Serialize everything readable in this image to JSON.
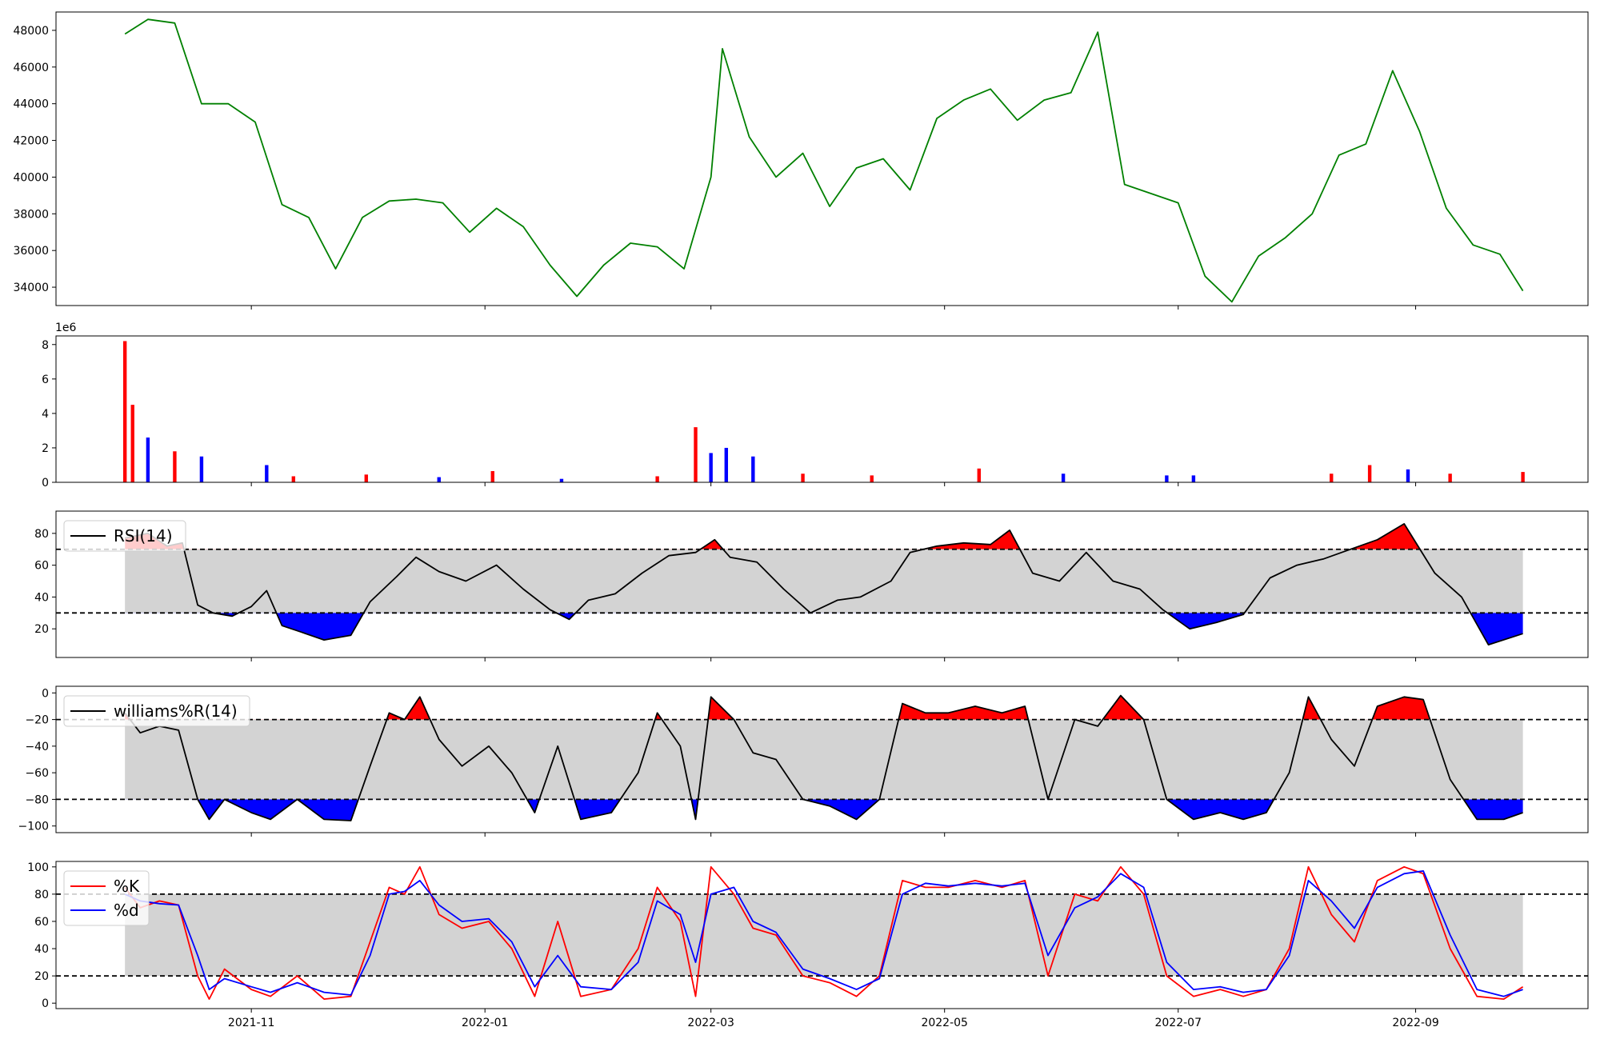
{
  "chart_data": [
    {
      "type": "line",
      "panel": "price",
      "ylim": [
        33000,
        49000
      ],
      "yticks": [
        34000,
        36000,
        38000,
        40000,
        42000,
        44000,
        46000,
        48000
      ],
      "colors": {
        "line": "#008000"
      },
      "x": [
        "2021-09-29",
        "2021-10-05",
        "2021-10-12",
        "2021-10-19",
        "2021-10-26",
        "2021-11-02",
        "2021-11-09",
        "2021-11-16",
        "2021-11-23",
        "2021-11-30",
        "2021-12-07",
        "2021-12-14",
        "2021-12-21",
        "2021-12-28",
        "2022-01-04",
        "2022-01-11",
        "2022-01-18",
        "2022-01-25",
        "2022-02-01",
        "2022-02-08",
        "2022-02-15",
        "2022-02-22",
        "2022-03-01",
        "2022-03-04",
        "2022-03-11",
        "2022-03-18",
        "2022-03-25",
        "2022-04-01",
        "2022-04-08",
        "2022-04-15",
        "2022-04-22",
        "2022-04-29",
        "2022-05-06",
        "2022-05-13",
        "2022-05-20",
        "2022-05-27",
        "2022-06-03",
        "2022-06-10",
        "2022-06-17",
        "2022-06-24",
        "2022-07-01",
        "2022-07-08",
        "2022-07-15",
        "2022-07-22",
        "2022-07-29",
        "2022-08-05",
        "2022-08-12",
        "2022-08-19",
        "2022-08-26",
        "2022-09-02",
        "2022-09-09",
        "2022-09-16",
        "2022-09-23",
        "2022-09-29"
      ],
      "values": [
        47800,
        48600,
        48400,
        44000,
        44000,
        43000,
        38500,
        37800,
        35000,
        37800,
        38700,
        38800,
        38600,
        37000,
        38300,
        37300,
        35200,
        33500,
        35200,
        36400,
        36200,
        35000,
        40000,
        47000,
        42200,
        40000,
        41300,
        38400,
        40500,
        41000,
        39300,
        43200,
        44200,
        44800,
        43100,
        44200,
        44600,
        47900,
        39600,
        39100,
        38600,
        34600,
        33200,
        35700,
        36700,
        38000,
        41200,
        41800,
        45800,
        42500,
        38300,
        36300,
        35800,
        33800
      ]
    },
    {
      "type": "bar",
      "panel": "volume",
      "ylim": [
        0,
        8500000
      ],
      "yticks": [
        0,
        2,
        4,
        6,
        8
      ],
      "offset_label": "1e6",
      "colors": {
        "up": "#ff0000",
        "down": "#0000ff"
      },
      "x": [
        "2021-09-29",
        "2021-10-01",
        "2021-10-05",
        "2021-10-12",
        "2021-10-19",
        "2021-11-05",
        "2021-11-12",
        "2021-12-01",
        "2021-12-20",
        "2022-01-03",
        "2022-01-21",
        "2022-02-15",
        "2022-02-25",
        "2022-03-01",
        "2022-03-05",
        "2022-03-12",
        "2022-03-25",
        "2022-04-12",
        "2022-05-10",
        "2022-06-01",
        "2022-06-28",
        "2022-07-05",
        "2022-08-10",
        "2022-08-20",
        "2022-08-30",
        "2022-09-10",
        "2022-09-29"
      ],
      "values": [
        8200000,
        4500000,
        2600000,
        1800000,
        1500000,
        1000000,
        350000,
        450000,
        300000,
        650000,
        200000,
        350000,
        3200000,
        1700000,
        2000000,
        1500000,
        500000,
        400000,
        800000,
        500000,
        400000,
        400000,
        500000,
        1000000,
        750000,
        500000,
        600000
      ],
      "directions": [
        "up",
        "up",
        "down",
        "up",
        "down",
        "down",
        "up",
        "up",
        "down",
        "up",
        "down",
        "up",
        "up",
        "down",
        "down",
        "down",
        "up",
        "up",
        "up",
        "down",
        "down",
        "down",
        "up",
        "up",
        "down",
        "up",
        "up"
      ]
    },
    {
      "type": "line",
      "panel": "rsi",
      "ylim": [
        2,
        94
      ],
      "yticks": [
        20,
        40,
        60,
        80
      ],
      "thresholds": [
        70,
        30
      ],
      "fill_range": [
        30,
        70
      ],
      "colors": {
        "line": "#000000",
        "overbought": "#ff0000",
        "oversold": "#0000ff",
        "band": "#d3d3d3"
      },
      "legend": [
        "RSI(14)"
      ],
      "legend_position": "upper-left",
      "x": [
        "2021-09-29",
        "2021-10-05",
        "2021-10-10",
        "2021-10-14",
        "2021-10-18",
        "2021-10-22",
        "2021-10-27",
        "2021-11-01",
        "2021-11-05",
        "2021-11-09",
        "2021-11-14",
        "2021-11-20",
        "2021-11-27",
        "2021-12-02",
        "2021-12-09",
        "2021-12-14",
        "2021-12-20",
        "2021-12-27",
        "2022-01-04",
        "2022-01-11",
        "2022-01-18",
        "2022-01-23",
        "2022-01-28",
        "2022-02-04",
        "2022-02-11",
        "2022-02-18",
        "2022-02-25",
        "2022-03-02",
        "2022-03-06",
        "2022-03-13",
        "2022-03-20",
        "2022-03-27",
        "2022-04-03",
        "2022-04-09",
        "2022-04-17",
        "2022-04-22",
        "2022-04-29",
        "2022-05-06",
        "2022-05-13",
        "2022-05-18",
        "2022-05-24",
        "2022-05-31",
        "2022-06-07",
        "2022-06-14",
        "2022-06-21",
        "2022-06-27",
        "2022-07-04",
        "2022-07-11",
        "2022-07-18",
        "2022-07-25",
        "2022-08-01",
        "2022-08-08",
        "2022-08-15",
        "2022-08-22",
        "2022-08-29",
        "2022-09-06",
        "2022-09-13",
        "2022-09-20",
        "2022-09-29"
      ],
      "values": [
        77,
        80,
        72,
        74,
        35,
        30,
        28,
        34,
        44,
        22,
        18,
        13,
        16,
        37,
        53,
        65,
        56,
        50,
        60,
        45,
        32,
        26,
        38,
        42,
        55,
        66,
        68,
        76,
        65,
        62,
        45,
        30,
        38,
        40,
        50,
        68,
        72,
        74,
        73,
        82,
        55,
        50,
        68,
        50,
        45,
        32,
        20,
        24,
        29,
        52,
        60,
        64,
        70,
        76,
        86,
        55,
        40,
        10,
        17
      ]
    },
    {
      "type": "line",
      "panel": "williams",
      "ylim": [
        -105,
        5
      ],
      "yticks": [
        -100,
        -80,
        -60,
        -40,
        -20,
        0
      ],
      "thresholds": [
        -20,
        -80
      ],
      "fill_range": [
        -80,
        -20
      ],
      "colors": {
        "line": "#000000",
        "overbought": "#ff0000",
        "oversold": "#0000ff",
        "band": "#d3d3d3"
      },
      "legend": [
        "williams%R(14)"
      ],
      "legend_position": "upper-left",
      "x": [
        "2021-09-29",
        "2021-10-03",
        "2021-10-08",
        "2021-10-13",
        "2021-10-18",
        "2021-10-21",
        "2021-10-25",
        "2021-11-01",
        "2021-11-06",
        "2021-11-13",
        "2021-11-20",
        "2021-11-27",
        "2021-12-02",
        "2021-12-07",
        "2021-12-11",
        "2021-12-15",
        "2021-12-20",
        "2021-12-26",
        "2022-01-02",
        "2022-01-08",
        "2022-01-14",
        "2022-01-20",
        "2022-01-26",
        "2022-02-03",
        "2022-02-10",
        "2022-02-15",
        "2022-02-21",
        "2022-02-25",
        "2022-03-01",
        "2022-03-07",
        "2022-03-12",
        "2022-03-18",
        "2022-03-25",
        "2022-04-01",
        "2022-04-08",
        "2022-04-14",
        "2022-04-20",
        "2022-04-26",
        "2022-05-02",
        "2022-05-09",
        "2022-05-16",
        "2022-05-22",
        "2022-05-28",
        "2022-06-04",
        "2022-06-10",
        "2022-06-16",
        "2022-06-22",
        "2022-06-28",
        "2022-07-05",
        "2022-07-12",
        "2022-07-18",
        "2022-07-24",
        "2022-07-30",
        "2022-08-04",
        "2022-08-10",
        "2022-08-16",
        "2022-08-22",
        "2022-08-29",
        "2022-09-03",
        "2022-09-10",
        "2022-09-17",
        "2022-09-24",
        "2022-09-29"
      ],
      "values": [
        -15,
        -30,
        -25,
        -28,
        -80,
        -95,
        -80,
        -90,
        -95,
        -80,
        -95,
        -96,
        -55,
        -15,
        -20,
        -3,
        -35,
        -55,
        -40,
        -60,
        -90,
        -40,
        -95,
        -90,
        -60,
        -15,
        -40,
        -95,
        -3,
        -20,
        -45,
        -50,
        -80,
        -85,
        -95,
        -80,
        -8,
        -15,
        -15,
        -10,
        -15,
        -10,
        -80,
        -20,
        -25,
        -2,
        -20,
        -80,
        -95,
        -90,
        -95,
        -90,
        -60,
        -3,
        -35,
        -55,
        -10,
        -3,
        -5,
        -65,
        -95,
        -95,
        -90
      ]
    },
    {
      "type": "line",
      "panel": "stochastic",
      "ylim": [
        -4,
        104
      ],
      "yticks": [
        0,
        20,
        40,
        60,
        80,
        100
      ],
      "thresholds": [
        80,
        20
      ],
      "fill_range": [
        20,
        80
      ],
      "colors": {
        "band": "#d3d3d3"
      },
      "legend": [
        "%K",
        "%d"
      ],
      "legend_position": "upper-left",
      "x": [
        "2021-09-29",
        "2021-10-03",
        "2021-10-08",
        "2021-10-13",
        "2021-10-18",
        "2021-10-21",
        "2021-10-25",
        "2021-11-01",
        "2021-11-06",
        "2021-11-13",
        "2021-11-20",
        "2021-11-27",
        "2021-12-02",
        "2021-12-07",
        "2021-12-11",
        "2021-12-15",
        "2021-12-20",
        "2021-12-26",
        "2022-01-02",
        "2022-01-08",
        "2022-01-14",
        "2022-01-20",
        "2022-01-26",
        "2022-02-03",
        "2022-02-10",
        "2022-02-15",
        "2022-02-21",
        "2022-02-25",
        "2022-03-01",
        "2022-03-07",
        "2022-03-12",
        "2022-03-18",
        "2022-03-25",
        "2022-04-01",
        "2022-04-08",
        "2022-04-14",
        "2022-04-20",
        "2022-04-26",
        "2022-05-02",
        "2022-05-09",
        "2022-05-16",
        "2022-05-22",
        "2022-05-28",
        "2022-06-04",
        "2022-06-10",
        "2022-06-16",
        "2022-06-22",
        "2022-06-28",
        "2022-07-05",
        "2022-07-12",
        "2022-07-18",
        "2022-07-24",
        "2022-07-30",
        "2022-08-04",
        "2022-08-10",
        "2022-08-16",
        "2022-08-22",
        "2022-08-29",
        "2022-09-03",
        "2022-09-10",
        "2022-09-17",
        "2022-09-24",
        "2022-09-29"
      ],
      "series": [
        {
          "name": "%K",
          "color": "#ff0000",
          "values": [
            85,
            70,
            75,
            72,
            20,
            3,
            25,
            10,
            5,
            20,
            3,
            5,
            45,
            85,
            80,
            100,
            65,
            55,
            60,
            40,
            5,
            60,
            5,
            10,
            40,
            85,
            60,
            5,
            100,
            80,
            55,
            50,
            20,
            15,
            5,
            20,
            90,
            85,
            85,
            90,
            85,
            90,
            20,
            80,
            75,
            100,
            80,
            20,
            5,
            10,
            5,
            10,
            40,
            100,
            65,
            45,
            90,
            100,
            95,
            40,
            5,
            3,
            12
          ]
        },
        {
          "name": "%d",
          "color": "#0000ff",
          "values": [
            80,
            75,
            73,
            72,
            35,
            10,
            18,
            12,
            8,
            15,
            8,
            6,
            35,
            80,
            82,
            90,
            72,
            60,
            62,
            45,
            12,
            35,
            12,
            10,
            30,
            75,
            65,
            30,
            80,
            85,
            60,
            52,
            25,
            18,
            10,
            18,
            80,
            88,
            86,
            88,
            86,
            88,
            35,
            70,
            78,
            95,
            85,
            30,
            10,
            12,
            8,
            10,
            35,
            90,
            75,
            55,
            85,
            95,
            97,
            50,
            10,
            5,
            10
          ]
        }
      ]
    }
  ],
  "x_axis": {
    "tick_dates": [
      "2021-11-01",
      "2022-01-01",
      "2022-03-01",
      "2022-05-01",
      "2022-07-01",
      "2022-09-01"
    ],
    "tick_labels": [
      "2021-11",
      "2022-01",
      "2022-03",
      "2022-05",
      "2022-07",
      "2022-09"
    ],
    "range": [
      "2021-09-11",
      "2022-10-16"
    ]
  }
}
